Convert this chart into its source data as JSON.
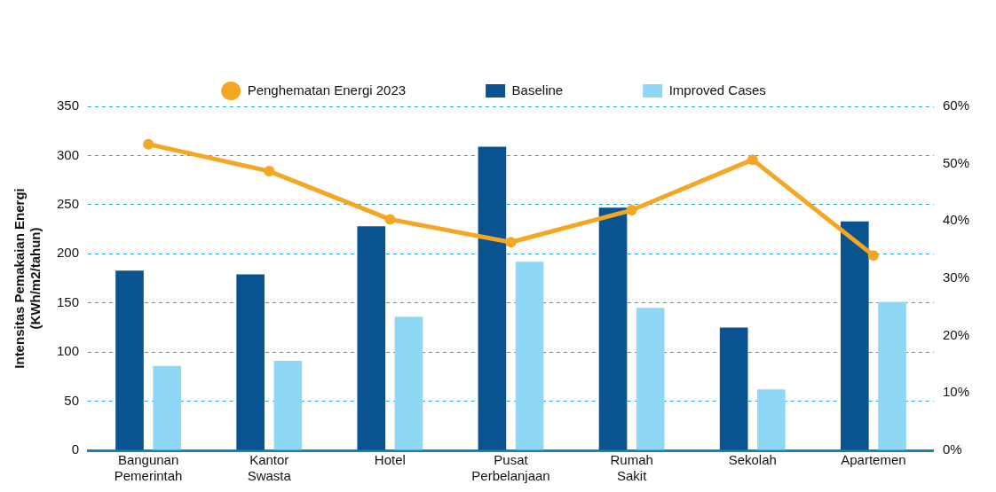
{
  "chart_data": {
    "type": "bar",
    "ylabel": "Intensitas Pemakaian Energi (KWh/m2/tahun)",
    "categories": [
      "Bangunan Pemerintah",
      "Kantor Swasta",
      "Hotel",
      "Pusat Perbelanjaan",
      "Rumah Sakit",
      "Sekolah",
      "Apartemen"
    ],
    "series": [
      {
        "name": "Baseline",
        "color": "#0a5391",
        "values": [
          183,
          179,
          228,
          309,
          247,
          125,
          233
        ]
      },
      {
        "name": "Improved Cases",
        "color": "#8fd8f5",
        "values": [
          86,
          91,
          136,
          192,
          145,
          62,
          151
        ]
      },
      {
        "name": "Penghematan Energi 2023",
        "type": "line",
        "axis": "y2",
        "color": "#f5a623",
        "values": [
          53.4,
          48.7,
          40.3,
          36.3,
          41.9,
          50.7,
          34.0
        ]
      }
    ],
    "ylim": [
      0,
      350
    ],
    "yticks": [
      0,
      50,
      100,
      150,
      200,
      250,
      300,
      350
    ],
    "y2lim": [
      0,
      60
    ],
    "y2ticks": [
      {
        "value": 0,
        "label": "0%"
      },
      {
        "value": 10,
        "label": "10%"
      },
      {
        "value": 20,
        "label": "20%"
      },
      {
        "value": 30,
        "label": "30%"
      },
      {
        "value": 40,
        "label": "40%"
      },
      {
        "value": 50,
        "label": "50%"
      },
      {
        "value": 60,
        "label": "60%"
      }
    ],
    "grid": "y",
    "legend": "top",
    "marker": "circle",
    "line_style": "solid"
  }
}
